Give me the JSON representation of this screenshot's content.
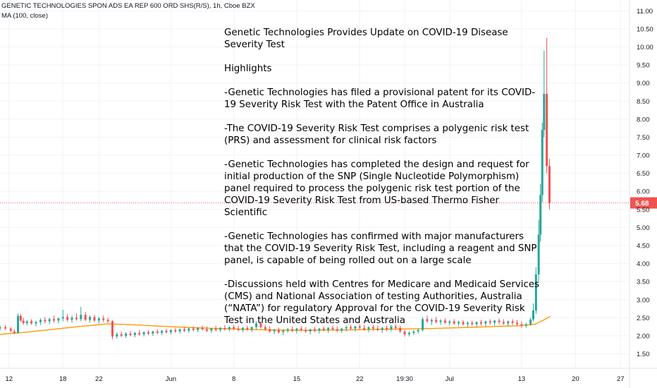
{
  "header": {
    "symbol_line": "GENETIC TECHNOLOGIES SPON ADS EA REP 600 ORD SHS(R/S), 1h, Cboe BZX",
    "indicator_line": "MA (100, close)"
  },
  "annotation": {
    "lines": [
      "Genetic Technologies Provides Update on COVID-19 Disease",
      "Severity Test",
      "",
      "Highlights",
      "",
      "-Genetic Technologies has filed a provisional patent for its COVID-",
      "19 Severity Risk Test with the Patent Office in Australia",
      "",
      "-The COVID-19 Severity Risk Test comprises a polygenic risk test",
      "(PRS) and assessment for clinical risk factors",
      "",
      "-Genetic Technologies has completed the design and request for",
      "initial production of the SNP (Single Nucleotide Polymorphism)",
      "panel required to process the polygenic risk test portion of the",
      "COVID-19 Severity Risk Test from US-based Thermo Fisher",
      "Scientific",
      "",
      "-Genetic Technologies has confirmed with major manufacturers",
      "that the COVID-19 Severity Risk Test, including a reagent and SNP",
      "panel, is capable of being rolled out on a large scale",
      "",
      "-Discussions held with Centres for Medicare and Medicaid Services",
      "(CMS) and National Association of testing Authorities, Australia",
      "(“NATA”) for regulatory Approval for the COVID-19 Severity Risk",
      "Test in the United States and Australia"
    ]
  },
  "colors": {
    "up": "#26a69a",
    "down": "#ef5350",
    "ma": "#ff9800",
    "price_line": "#ef5350",
    "grid": "#f0f3fa"
  },
  "chart_data": {
    "type": "candlestick",
    "symbol": "GENETIC TECHNOLOGIES SPON ADS EA REP 600 ORD SHS(R/S)",
    "interval": "1h",
    "exchange": "Cboe BZX",
    "indicator": "MA (100, close)",
    "ylim": [
      1.1,
      11.3
    ],
    "y_ticks": [
      "1.50",
      "2.00",
      "2.50",
      "3.00",
      "3.50",
      "4.00",
      "4.50",
      "5.00",
      "5.50",
      "6.00",
      "6.50",
      "7.00",
      "7.50",
      "8.00",
      "8.50",
      "9.00",
      "9.50",
      "10.00",
      "10.50",
      "11.00"
    ],
    "last_price": "5.68",
    "x_ticks": [
      "12",
      "18",
      "22",
      "Jun",
      "8",
      "15",
      "22",
      "19:30",
      "Jul",
      "13",
      "20",
      "27"
    ],
    "x_tick_positions": [
      3,
      9,
      13,
      21,
      28,
      35,
      42,
      47,
      52,
      60,
      66,
      71
    ],
    "x_range": [
      2,
      72
    ],
    "candles": [
      {
        "t": 2.0,
        "o": 2.2,
        "h": 2.28,
        "l": 2.14,
        "c": 2.24
      },
      {
        "t": 2.6,
        "o": 2.24,
        "h": 2.3,
        "l": 2.16,
        "c": 2.2
      },
      {
        "t": 3.2,
        "o": 2.2,
        "h": 2.24,
        "l": 2.1,
        "c": 2.14
      },
      {
        "t": 3.6,
        "o": 2.12,
        "h": 2.18,
        "l": 2.05,
        "c": 2.08
      },
      {
        "t": 4.0,
        "o": 2.08,
        "h": 2.62,
        "l": 2.06,
        "c": 2.55
      },
      {
        "t": 4.3,
        "o": 2.55,
        "h": 2.6,
        "l": 2.38,
        "c": 2.42
      },
      {
        "t": 4.6,
        "o": 2.42,
        "h": 2.5,
        "l": 2.3,
        "c": 2.35
      },
      {
        "t": 5.0,
        "o": 2.35,
        "h": 2.44,
        "l": 2.28,
        "c": 2.4
      },
      {
        "t": 5.5,
        "o": 2.4,
        "h": 2.46,
        "l": 2.3,
        "c": 2.34
      },
      {
        "t": 6.0,
        "o": 2.34,
        "h": 2.42,
        "l": 2.26,
        "c": 2.38
      },
      {
        "t": 6.5,
        "o": 2.38,
        "h": 2.48,
        "l": 2.3,
        "c": 2.44
      },
      {
        "t": 7.0,
        "o": 2.44,
        "h": 2.52,
        "l": 2.34,
        "c": 2.4
      },
      {
        "t": 7.5,
        "o": 2.4,
        "h": 2.5,
        "l": 2.32,
        "c": 2.46
      },
      {
        "t": 8.0,
        "o": 2.46,
        "h": 2.56,
        "l": 2.36,
        "c": 2.42
      },
      {
        "t": 8.5,
        "o": 2.42,
        "h": 2.5,
        "l": 2.34,
        "c": 2.48
      },
      {
        "t": 9.0,
        "o": 2.48,
        "h": 2.72,
        "l": 2.4,
        "c": 2.52
      },
      {
        "t": 9.5,
        "o": 2.52,
        "h": 2.6,
        "l": 2.38,
        "c": 2.44
      },
      {
        "t": 10.0,
        "o": 2.44,
        "h": 2.56,
        "l": 2.36,
        "c": 2.5
      },
      {
        "t": 10.5,
        "o": 2.5,
        "h": 2.62,
        "l": 2.42,
        "c": 2.46
      },
      {
        "t": 11.0,
        "o": 2.46,
        "h": 2.8,
        "l": 2.4,
        "c": 2.58
      },
      {
        "t": 11.5,
        "o": 2.58,
        "h": 2.66,
        "l": 2.4,
        "c": 2.44
      },
      {
        "t": 12.0,
        "o": 2.44,
        "h": 2.56,
        "l": 2.36,
        "c": 2.52
      },
      {
        "t": 12.5,
        "o": 2.52,
        "h": 2.58,
        "l": 2.38,
        "c": 2.42
      },
      {
        "t": 13.0,
        "o": 2.42,
        "h": 2.52,
        "l": 2.34,
        "c": 2.48
      },
      {
        "t": 13.5,
        "o": 2.48,
        "h": 2.56,
        "l": 2.38,
        "c": 2.44
      },
      {
        "t": 14.0,
        "o": 2.44,
        "h": 2.5,
        "l": 2.36,
        "c": 2.4
      },
      {
        "t": 14.5,
        "o": 2.4,
        "h": 2.44,
        "l": 1.9,
        "c": 1.98
      },
      {
        "t": 15.0,
        "o": 1.98,
        "h": 2.1,
        "l": 1.92,
        "c": 2.04
      },
      {
        "t": 15.5,
        "o": 2.04,
        "h": 2.12,
        "l": 1.96,
        "c": 2.0
      },
      {
        "t": 16.0,
        "o": 2.0,
        "h": 2.1,
        "l": 1.94,
        "c": 2.06
      },
      {
        "t": 16.5,
        "o": 2.06,
        "h": 2.14,
        "l": 1.98,
        "c": 2.02
      },
      {
        "t": 17.0,
        "o": 2.02,
        "h": 2.1,
        "l": 1.96,
        "c": 2.08
      },
      {
        "t": 17.5,
        "o": 2.08,
        "h": 2.16,
        "l": 2.0,
        "c": 2.04
      },
      {
        "t": 18.0,
        "o": 2.04,
        "h": 2.12,
        "l": 1.98,
        "c": 2.1
      },
      {
        "t": 18.5,
        "o": 2.1,
        "h": 2.16,
        "l": 2.02,
        "c": 2.06
      },
      {
        "t": 19.0,
        "o": 2.06,
        "h": 2.14,
        "l": 2.0,
        "c": 2.12
      },
      {
        "t": 19.5,
        "o": 2.12,
        "h": 2.18,
        "l": 2.04,
        "c": 2.08
      },
      {
        "t": 20.0,
        "o": 2.08,
        "h": 2.16,
        "l": 2.02,
        "c": 2.14
      },
      {
        "t": 20.5,
        "o": 2.14,
        "h": 2.2,
        "l": 2.06,
        "c": 2.1
      },
      {
        "t": 21.0,
        "o": 2.1,
        "h": 2.18,
        "l": 2.04,
        "c": 2.16
      },
      {
        "t": 21.5,
        "o": 2.16,
        "h": 2.22,
        "l": 2.08,
        "c": 2.12
      },
      {
        "t": 22.0,
        "o": 2.12,
        "h": 2.2,
        "l": 2.06,
        "c": 2.18
      },
      {
        "t": 22.5,
        "o": 2.18,
        "h": 2.24,
        "l": 2.1,
        "c": 2.14
      },
      {
        "t": 23.0,
        "o": 2.14,
        "h": 2.22,
        "l": 2.08,
        "c": 2.2
      },
      {
        "t": 23.5,
        "o": 2.2,
        "h": 2.26,
        "l": 2.12,
        "c": 2.16
      },
      {
        "t": 24.0,
        "o": 2.16,
        "h": 2.24,
        "l": 2.1,
        "c": 2.22
      },
      {
        "t": 24.5,
        "o": 2.22,
        "h": 2.28,
        "l": 2.14,
        "c": 2.18
      },
      {
        "t": 25.0,
        "o": 2.18,
        "h": 2.26,
        "l": 2.1,
        "c": 2.14
      },
      {
        "t": 25.5,
        "o": 2.14,
        "h": 2.22,
        "l": 2.08,
        "c": 2.2
      },
      {
        "t": 26.0,
        "o": 2.2,
        "h": 2.28,
        "l": 2.12,
        "c": 2.16
      },
      {
        "t": 26.5,
        "o": 2.16,
        "h": 2.24,
        "l": 2.1,
        "c": 2.22
      },
      {
        "t": 27.0,
        "o": 2.22,
        "h": 2.3,
        "l": 2.14,
        "c": 2.18
      },
      {
        "t": 27.5,
        "o": 2.18,
        "h": 2.26,
        "l": 2.12,
        "c": 2.24
      },
      {
        "t": 28.0,
        "o": 2.24,
        "h": 2.3,
        "l": 2.16,
        "c": 2.2
      },
      {
        "t": 28.5,
        "o": 2.2,
        "h": 2.28,
        "l": 2.12,
        "c": 2.16
      },
      {
        "t": 29.0,
        "o": 2.16,
        "h": 2.24,
        "l": 2.1,
        "c": 2.22
      },
      {
        "t": 29.5,
        "o": 2.22,
        "h": 2.28,
        "l": 2.14,
        "c": 2.18
      },
      {
        "t": 30.0,
        "o": 2.18,
        "h": 2.26,
        "l": 2.1,
        "c": 2.24
      },
      {
        "t": 30.5,
        "o": 2.24,
        "h": 2.4,
        "l": 2.18,
        "c": 2.34
      },
      {
        "t": 31.0,
        "o": 2.34,
        "h": 2.4,
        "l": 2.2,
        "c": 2.24
      },
      {
        "t": 31.5,
        "o": 2.24,
        "h": 2.3,
        "l": 2.14,
        "c": 2.18
      },
      {
        "t": 32.0,
        "o": 2.18,
        "h": 2.26,
        "l": 2.08,
        "c": 2.12
      },
      {
        "t": 32.5,
        "o": 2.12,
        "h": 2.2,
        "l": 2.04,
        "c": 2.16
      },
      {
        "t": 33.0,
        "o": 2.16,
        "h": 2.22,
        "l": 2.06,
        "c": 2.1
      },
      {
        "t": 33.5,
        "o": 2.1,
        "h": 2.18,
        "l": 2.02,
        "c": 2.14
      },
      {
        "t": 34.0,
        "o": 2.14,
        "h": 2.22,
        "l": 2.08,
        "c": 2.18
      },
      {
        "t": 34.5,
        "o": 2.18,
        "h": 2.26,
        "l": 2.1,
        "c": 2.14
      },
      {
        "t": 35.0,
        "o": 2.14,
        "h": 2.22,
        "l": 2.06,
        "c": 2.2
      },
      {
        "t": 35.5,
        "o": 2.2,
        "h": 2.26,
        "l": 2.12,
        "c": 2.16
      },
      {
        "t": 36.0,
        "o": 2.16,
        "h": 2.24,
        "l": 2.08,
        "c": 2.12
      },
      {
        "t": 36.5,
        "o": 2.12,
        "h": 2.2,
        "l": 2.04,
        "c": 2.18
      },
      {
        "t": 37.0,
        "o": 2.18,
        "h": 2.24,
        "l": 2.1,
        "c": 2.14
      },
      {
        "t": 37.5,
        "o": 2.14,
        "h": 2.22,
        "l": 2.06,
        "c": 2.2
      },
      {
        "t": 38.0,
        "o": 2.2,
        "h": 2.26,
        "l": 2.12,
        "c": 2.16
      },
      {
        "t": 38.5,
        "o": 2.16,
        "h": 2.24,
        "l": 2.08,
        "c": 2.22
      },
      {
        "t": 39.0,
        "o": 2.22,
        "h": 2.28,
        "l": 2.14,
        "c": 2.18
      },
      {
        "t": 39.5,
        "o": 2.18,
        "h": 2.26,
        "l": 2.1,
        "c": 2.14
      },
      {
        "t": 40.0,
        "o": 2.14,
        "h": 2.22,
        "l": 2.08,
        "c": 2.2
      },
      {
        "t": 40.5,
        "o": 2.2,
        "h": 2.28,
        "l": 2.12,
        "c": 2.24
      },
      {
        "t": 41.0,
        "o": 2.24,
        "h": 2.3,
        "l": 2.16,
        "c": 2.2
      },
      {
        "t": 41.5,
        "o": 2.2,
        "h": 2.28,
        "l": 2.12,
        "c": 2.26
      },
      {
        "t": 42.0,
        "o": 2.26,
        "h": 2.32,
        "l": 2.16,
        "c": 2.22
      },
      {
        "t": 42.5,
        "o": 2.22,
        "h": 2.3,
        "l": 2.14,
        "c": 2.18
      },
      {
        "t": 43.0,
        "o": 2.18,
        "h": 2.26,
        "l": 2.1,
        "c": 2.24
      },
      {
        "t": 43.5,
        "o": 2.24,
        "h": 2.3,
        "l": 2.14,
        "c": 2.2
      },
      {
        "t": 44.0,
        "o": 2.2,
        "h": 2.28,
        "l": 2.12,
        "c": 2.16
      },
      {
        "t": 44.5,
        "o": 2.16,
        "h": 2.24,
        "l": 2.08,
        "c": 2.22
      },
      {
        "t": 45.0,
        "o": 2.22,
        "h": 2.28,
        "l": 2.12,
        "c": 2.18
      },
      {
        "t": 45.5,
        "o": 2.18,
        "h": 2.3,
        "l": 2.12,
        "c": 2.26
      },
      {
        "t": 46.0,
        "o": 2.26,
        "h": 2.32,
        "l": 2.16,
        "c": 2.22
      },
      {
        "t": 46.5,
        "o": 2.22,
        "h": 2.28,
        "l": 2.08,
        "c": 2.12
      },
      {
        "t": 47.0,
        "o": 2.12,
        "h": 2.16,
        "l": 1.98,
        "c": 2.04
      },
      {
        "t": 47.5,
        "o": 2.04,
        "h": 2.12,
        "l": 1.98,
        "c": 2.08
      },
      {
        "t": 48.0,
        "o": 2.08,
        "h": 2.16,
        "l": 2.02,
        "c": 2.12
      },
      {
        "t": 48.5,
        "o": 2.12,
        "h": 2.2,
        "l": 2.06,
        "c": 2.16
      },
      {
        "t": 49.0,
        "o": 2.16,
        "h": 2.52,
        "l": 2.12,
        "c": 2.46
      },
      {
        "t": 49.5,
        "o": 2.46,
        "h": 2.56,
        "l": 2.36,
        "c": 2.4
      },
      {
        "t": 50.0,
        "o": 2.4,
        "h": 2.48,
        "l": 2.3,
        "c": 2.44
      },
      {
        "t": 50.5,
        "o": 2.44,
        "h": 2.52,
        "l": 2.34,
        "c": 2.38
      },
      {
        "t": 51.0,
        "o": 2.38,
        "h": 2.46,
        "l": 2.3,
        "c": 2.42
      },
      {
        "t": 51.5,
        "o": 2.42,
        "h": 2.48,
        "l": 2.32,
        "c": 2.36
      },
      {
        "t": 52.0,
        "o": 2.36,
        "h": 2.44,
        "l": 2.28,
        "c": 2.4
      },
      {
        "t": 52.5,
        "o": 2.4,
        "h": 2.46,
        "l": 2.3,
        "c": 2.34
      },
      {
        "t": 53.0,
        "o": 2.34,
        "h": 2.42,
        "l": 2.26,
        "c": 2.38
      },
      {
        "t": 53.5,
        "o": 2.38,
        "h": 2.44,
        "l": 2.28,
        "c": 2.32
      },
      {
        "t": 54.0,
        "o": 2.32,
        "h": 2.4,
        "l": 2.24,
        "c": 2.36
      },
      {
        "t": 54.5,
        "o": 2.36,
        "h": 2.42,
        "l": 2.28,
        "c": 2.32
      },
      {
        "t": 55.0,
        "o": 2.32,
        "h": 2.4,
        "l": 2.24,
        "c": 2.38
      },
      {
        "t": 55.5,
        "o": 2.38,
        "h": 2.44,
        "l": 2.28,
        "c": 2.34
      },
      {
        "t": 56.0,
        "o": 2.34,
        "h": 2.42,
        "l": 2.26,
        "c": 2.4
      },
      {
        "t": 56.5,
        "o": 2.4,
        "h": 2.46,
        "l": 2.3,
        "c": 2.36
      },
      {
        "t": 57.0,
        "o": 2.36,
        "h": 2.44,
        "l": 2.28,
        "c": 2.42
      },
      {
        "t": 57.5,
        "o": 2.42,
        "h": 2.48,
        "l": 2.32,
        "c": 2.38
      },
      {
        "t": 58.0,
        "o": 2.38,
        "h": 2.46,
        "l": 2.3,
        "c": 2.34
      },
      {
        "t": 58.5,
        "o": 2.34,
        "h": 2.42,
        "l": 2.26,
        "c": 2.4
      },
      {
        "t": 59.0,
        "o": 2.4,
        "h": 2.46,
        "l": 2.3,
        "c": 2.36
      },
      {
        "t": 59.5,
        "o": 2.36,
        "h": 2.44,
        "l": 2.28,
        "c": 2.32
      },
      {
        "t": 60.0,
        "o": 2.32,
        "h": 2.4,
        "l": 2.22,
        "c": 2.28
      },
      {
        "t": 60.5,
        "o": 2.28,
        "h": 2.36,
        "l": 2.22,
        "c": 2.32
      },
      {
        "t": 61.0,
        "o": 2.32,
        "h": 2.5,
        "l": 2.28,
        "c": 2.45
      },
      {
        "t": 61.3,
        "o": 2.45,
        "h": 2.9,
        "l": 2.4,
        "c": 2.7
      },
      {
        "t": 61.6,
        "o": 2.7,
        "h": 3.9,
        "l": 2.6,
        "c": 3.7
      },
      {
        "t": 61.9,
        "o": 3.7,
        "h": 5.2,
        "l": 3.5,
        "c": 4.8
      },
      {
        "t": 62.1,
        "o": 4.8,
        "h": 6.2,
        "l": 4.6,
        "c": 5.9
      },
      {
        "t": 62.3,
        "o": 5.9,
        "h": 7.9,
        "l": 5.7,
        "c": 7.7
      },
      {
        "t": 62.5,
        "o": 7.7,
        "h": 9.9,
        "l": 7.5,
        "c": 8.7
      },
      {
        "t": 62.8,
        "o": 8.7,
        "h": 10.25,
        "l": 6.5,
        "c": 6.7
      },
      {
        "t": 63.1,
        "o": 6.7,
        "h": 6.9,
        "l": 5.5,
        "c": 5.68
      }
    ],
    "ma_100": [
      {
        "t": 2.0,
        "v": 2.04
      },
      {
        "t": 5.0,
        "v": 2.1
      },
      {
        "t": 8.0,
        "v": 2.18
      },
      {
        "t": 11.0,
        "v": 2.26
      },
      {
        "t": 14.0,
        "v": 2.33
      },
      {
        "t": 17.0,
        "v": 2.3
      },
      {
        "t": 21.0,
        "v": 2.25
      },
      {
        "t": 25.0,
        "v": 2.21
      },
      {
        "t": 30.0,
        "v": 2.17
      },
      {
        "t": 35.0,
        "v": 2.15
      },
      {
        "t": 40.0,
        "v": 2.16
      },
      {
        "t": 45.0,
        "v": 2.18
      },
      {
        "t": 50.0,
        "v": 2.2
      },
      {
        "t": 55.0,
        "v": 2.24
      },
      {
        "t": 60.0,
        "v": 2.28
      },
      {
        "t": 61.5,
        "v": 2.32
      },
      {
        "t": 62.5,
        "v": 2.44
      },
      {
        "t": 63.2,
        "v": 2.54
      }
    ]
  }
}
